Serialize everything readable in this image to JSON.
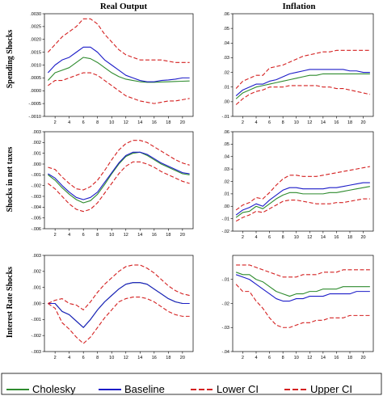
{
  "column_titles": [
    "Real Output",
    "Inflation"
  ],
  "row_titles": [
    "Spending Shocks",
    "Shocks in net taxes",
    "Interest Rate Shocks"
  ],
  "colors": {
    "cholesky": "#2e8b2e",
    "baseline": "#1c1cc8",
    "ci": "#d42020",
    "frame": "#000000"
  },
  "legend": [
    {
      "label": "Cholesky",
      "key": "cholesky"
    },
    {
      "label": "Baseline",
      "key": "baseline"
    },
    {
      "label": "Lower CI",
      "key": "lower"
    },
    {
      "label": "Upper CI",
      "key": "upper"
    }
  ],
  "chart_data": [
    {
      "type": "line",
      "row": 0,
      "col": 0,
      "x": [
        1,
        2,
        3,
        4,
        5,
        6,
        7,
        8,
        9,
        10,
        11,
        12,
        13,
        14,
        15,
        16,
        17,
        18,
        19,
        20,
        21
      ],
      "xticks": [
        2,
        4,
        6,
        8,
        10,
        12,
        14,
        16,
        18,
        20
      ],
      "xlim": [
        0.5,
        21.5
      ],
      "ylim": [
        -0.001,
        0.003
      ],
      "yticks": [
        -0.001,
        -0.0005,
        0,
        0.0005,
        0.001,
        0.0015,
        0.002,
        0.0025,
        0.003
      ],
      "ytick_labels": [
        "-.0010",
        "-.0005",
        ".0000",
        ".0005",
        ".0010",
        ".0015",
        ".0020",
        ".0025",
        ".0030"
      ],
      "series": [
        {
          "name": "Cholesky",
          "key": "cholesky",
          "values": [
            0.0004,
            0.0007,
            0.0008,
            0.0009,
            0.0011,
            0.0013,
            0.00125,
            0.0011,
            0.0009,
            0.0007,
            0.00055,
            0.00045,
            0.0004,
            0.00035,
            0.00033,
            0.00033,
            0.00034,
            0.00035,
            0.00036,
            0.00037,
            0.00038
          ]
        },
        {
          "name": "Baseline",
          "key": "baseline",
          "values": [
            0.0007,
            0.001,
            0.0012,
            0.0013,
            0.0015,
            0.0017,
            0.0017,
            0.0015,
            0.0012,
            0.001,
            0.0008,
            0.0006,
            0.0005,
            0.0004,
            0.00035,
            0.00035,
            0.0004,
            0.00042,
            0.00045,
            0.0005,
            0.0005
          ]
        },
        {
          "name": "Lower CI",
          "key": "lower",
          "values": [
            0.0002,
            0.0004,
            0.0004,
            0.0005,
            0.0006,
            0.0007,
            0.0007,
            0.0006,
            0.0004,
            0.0002,
            0.0,
            -0.0002,
            -0.0003,
            -0.0004,
            -0.00045,
            -0.0005,
            -0.00045,
            -0.0004,
            -0.0004,
            -0.00035,
            -0.0003
          ]
        },
        {
          "name": "Upper CI",
          "key": "upper",
          "values": [
            0.0015,
            0.0018,
            0.0021,
            0.0023,
            0.0025,
            0.0028,
            0.0028,
            0.0026,
            0.0022,
            0.0019,
            0.0016,
            0.0014,
            0.0013,
            0.0012,
            0.0012,
            0.0012,
            0.0012,
            0.00115,
            0.0011,
            0.0011,
            0.0011
          ]
        }
      ]
    },
    {
      "type": "line",
      "row": 0,
      "col": 1,
      "x": [
        1,
        2,
        3,
        4,
        5,
        6,
        7,
        8,
        9,
        10,
        11,
        12,
        13,
        14,
        15,
        16,
        17,
        18,
        19,
        20,
        21
      ],
      "xticks": [
        2,
        4,
        6,
        8,
        10,
        12,
        14,
        16,
        18,
        20
      ],
      "xlim": [
        0.5,
        21.5
      ],
      "ylim": [
        -0.01,
        0.06
      ],
      "yticks": [
        -0.01,
        0,
        0.01,
        0.02,
        0.03,
        0.04,
        0.05,
        0.06
      ],
      "ytick_labels": [
        "-.01",
        ".00",
        ".01",
        ".02",
        ".03",
        ".04",
        ".05",
        ".06"
      ],
      "series": [
        {
          "name": "Cholesky",
          "key": "cholesky",
          "values": [
            0.002,
            0.006,
            0.008,
            0.01,
            0.011,
            0.012,
            0.013,
            0.014,
            0.015,
            0.016,
            0.017,
            0.018,
            0.018,
            0.019,
            0.019,
            0.019,
            0.019,
            0.019,
            0.019,
            0.019,
            0.019
          ]
        },
        {
          "name": "Baseline",
          "key": "baseline",
          "values": [
            0.004,
            0.008,
            0.01,
            0.012,
            0.012,
            0.014,
            0.015,
            0.017,
            0.019,
            0.02,
            0.021,
            0.022,
            0.022,
            0.022,
            0.022,
            0.022,
            0.022,
            0.021,
            0.021,
            0.02,
            0.02
          ]
        },
        {
          "name": "Lower CI",
          "key": "lower",
          "values": [
            -0.002,
            0.002,
            0.005,
            0.007,
            0.008,
            0.01,
            0.01,
            0.01,
            0.011,
            0.011,
            0.011,
            0.011,
            0.011,
            0.01,
            0.01,
            0.009,
            0.009,
            0.008,
            0.007,
            0.006,
            0.005
          ]
        },
        {
          "name": "Upper CI",
          "key": "upper",
          "values": [
            0.009,
            0.014,
            0.016,
            0.018,
            0.018,
            0.023,
            0.024,
            0.025,
            0.027,
            0.029,
            0.031,
            0.032,
            0.033,
            0.034,
            0.034,
            0.035,
            0.035,
            0.035,
            0.035,
            0.035,
            0.035
          ]
        }
      ]
    },
    {
      "type": "line",
      "row": 1,
      "col": 0,
      "x": [
        1,
        2,
        3,
        4,
        5,
        6,
        7,
        8,
        9,
        10,
        11,
        12,
        13,
        14,
        15,
        16,
        17,
        18,
        19,
        20,
        21
      ],
      "xticks": [
        2,
        4,
        6,
        8,
        10,
        12,
        14,
        16,
        18,
        20
      ],
      "xlim": [
        0.5,
        21.5
      ],
      "ylim": [
        -0.006,
        0.003
      ],
      "yticks": [
        -0.006,
        -0.005,
        -0.004,
        -0.003,
        -0.002,
        -0.001,
        0,
        0.001,
        0.002,
        0.003
      ],
      "ytick_labels": [
        "-.006",
        "-.005",
        "-.004",
        "-.003",
        "-.002",
        "-.001",
        ".000",
        ".001",
        ".002",
        ".003"
      ],
      "series": [
        {
          "name": "Cholesky",
          "key": "cholesky",
          "values": [
            -0.001,
            -0.0015,
            -0.0022,
            -0.0028,
            -0.0033,
            -0.0036,
            -0.0034,
            -0.0028,
            -0.0019,
            -0.0009,
            0.0,
            0.0007,
            0.001,
            0.0011,
            0.0008,
            0.0004,
            0.0,
            -0.0003,
            -0.0006,
            -0.0009,
            -0.001
          ]
        },
        {
          "name": "Baseline",
          "key": "baseline",
          "values": [
            -0.0009,
            -0.0013,
            -0.002,
            -0.0026,
            -0.0031,
            -0.0033,
            -0.0031,
            -0.0026,
            -0.0017,
            -0.0008,
            0.0001,
            0.0008,
            0.0011,
            0.0011,
            0.0009,
            0.0005,
            0.0001,
            -0.0002,
            -0.0005,
            -0.0008,
            -0.0009
          ]
        },
        {
          "name": "Lower CI",
          "key": "lower",
          "values": [
            -0.0018,
            -0.0023,
            -0.003,
            -0.0037,
            -0.0042,
            -0.0044,
            -0.0042,
            -0.0036,
            -0.0027,
            -0.0018,
            -0.0009,
            -0.0002,
            0.0002,
            0.0002,
            0.0,
            -0.0003,
            -0.0007,
            -0.001,
            -0.0013,
            -0.0016,
            -0.0018
          ]
        },
        {
          "name": "Upper CI",
          "key": "upper",
          "values": [
            -0.0003,
            -0.0005,
            -0.0012,
            -0.0018,
            -0.0023,
            -0.0024,
            -0.0021,
            -0.0015,
            -0.0006,
            0.0004,
            0.0013,
            0.0019,
            0.0022,
            0.0022,
            0.002,
            0.0016,
            0.0012,
            0.0008,
            0.0004,
            0.0001,
            -0.0001
          ]
        }
      ]
    },
    {
      "type": "line",
      "row": 1,
      "col": 1,
      "x": [
        1,
        2,
        3,
        4,
        5,
        6,
        7,
        8,
        9,
        10,
        11,
        12,
        13,
        14,
        15,
        16,
        17,
        18,
        19,
        20,
        21
      ],
      "xticks": [
        2,
        4,
        6,
        8,
        10,
        12,
        14,
        16,
        18,
        20
      ],
      "xlim": [
        0.5,
        21.5
      ],
      "ylim": [
        -0.02,
        0.06
      ],
      "yticks": [
        -0.02,
        -0.01,
        0,
        0.01,
        0.02,
        0.03,
        0.04,
        0.05,
        0.06
      ],
      "ytick_labels": [
        "-.02",
        "-.01",
        ".00",
        ".01",
        ".02",
        ".03",
        ".04",
        ".05",
        ".06"
      ],
      "series": [
        {
          "name": "Cholesky",
          "key": "cholesky",
          "values": [
            -0.009,
            -0.005,
            -0.004,
            0.0,
            -0.002,
            0.002,
            0.006,
            0.009,
            0.011,
            0.011,
            0.01,
            0.01,
            0.01,
            0.01,
            0.011,
            0.011,
            0.012,
            0.013,
            0.014,
            0.015,
            0.016
          ]
        },
        {
          "name": "Baseline",
          "key": "baseline",
          "values": [
            -0.007,
            -0.003,
            -0.001,
            0.002,
            0.0,
            0.005,
            0.009,
            0.013,
            0.015,
            0.015,
            0.014,
            0.014,
            0.014,
            0.014,
            0.015,
            0.015,
            0.016,
            0.017,
            0.018,
            0.019,
            0.019
          ]
        },
        {
          "name": "Lower CI",
          "key": "lower",
          "values": [
            -0.012,
            -0.009,
            -0.007,
            -0.004,
            -0.005,
            -0.002,
            0.001,
            0.004,
            0.005,
            0.005,
            0.004,
            0.003,
            0.002,
            0.002,
            0.002,
            0.003,
            0.003,
            0.004,
            0.005,
            0.006,
            0.006
          ]
        },
        {
          "name": "Upper CI",
          "key": "upper",
          "values": [
            -0.003,
            0.001,
            0.003,
            0.007,
            0.006,
            0.011,
            0.017,
            0.022,
            0.025,
            0.025,
            0.024,
            0.024,
            0.024,
            0.025,
            0.026,
            0.027,
            0.028,
            0.029,
            0.03,
            0.031,
            0.032
          ]
        }
      ]
    },
    {
      "type": "line",
      "row": 2,
      "col": 0,
      "x": [
        1,
        2,
        3,
        4,
        5,
        6,
        7,
        8,
        9,
        10,
        11,
        12,
        13,
        14,
        15,
        16,
        17,
        18,
        19,
        20,
        21
      ],
      "xticks": [
        2,
        4,
        6,
        8,
        10,
        12,
        14,
        16,
        18,
        20
      ],
      "xlim": [
        0.5,
        21.5
      ],
      "ylim": [
        -0.003,
        0.003
      ],
      "yticks": [
        -0.003,
        -0.002,
        -0.001,
        0,
        0.001,
        0.002,
        0.003
      ],
      "ytick_labels": [
        "-.003",
        "-.002",
        "-.001",
        ".000",
        ".001",
        ".002",
        ".003"
      ],
      "series": [
        {
          "name": "Cholesky",
          "key": "cholesky",
          "values": [
            0.0,
            0.0,
            -0.0005,
            -0.0007,
            -0.0011,
            -0.0015,
            -0.001,
            -0.0004,
            0.0001,
            0.0005,
            0.0009,
            0.0012,
            0.0013,
            0.0013,
            0.0012,
            0.0009,
            0.0006,
            0.0003,
            0.0001,
            0.0,
            0.0
          ]
        },
        {
          "name": "Baseline",
          "key": "baseline",
          "values": [
            0.0,
            0.0,
            -0.0005,
            -0.0007,
            -0.0011,
            -0.0015,
            -0.001,
            -0.0004,
            0.0001,
            0.0005,
            0.0009,
            0.0012,
            0.0013,
            0.0013,
            0.0012,
            0.0009,
            0.0006,
            0.0003,
            0.0001,
            0.0,
            0.0
          ]
        },
        {
          "name": "Lower CI",
          "key": "lower",
          "values": [
            0.0,
            -0.0003,
            -0.0012,
            -0.0016,
            -0.0021,
            -0.0025,
            -0.0021,
            -0.0015,
            -0.0009,
            -0.0004,
            0.0001,
            0.0003,
            0.0004,
            0.0004,
            0.0003,
            0.0001,
            -0.0002,
            -0.0005,
            -0.0007,
            -0.0008,
            -0.0008
          ]
        },
        {
          "name": "Upper CI",
          "key": "upper",
          "values": [
            0.0,
            0.0002,
            0.0003,
            0.0,
            -0.0001,
            -0.0004,
            0.0001,
            0.0007,
            0.0012,
            0.0016,
            0.002,
            0.0023,
            0.0024,
            0.0024,
            0.0022,
            0.0019,
            0.0015,
            0.0011,
            0.0008,
            0.0006,
            0.0005
          ]
        }
      ]
    },
    {
      "type": "line",
      "row": 2,
      "col": 1,
      "x": [
        1,
        2,
        3,
        4,
        5,
        6,
        7,
        8,
        9,
        10,
        11,
        12,
        13,
        14,
        15,
        16,
        17,
        18,
        19,
        20,
        21
      ],
      "xticks": [
        2,
        4,
        6,
        8,
        10,
        12,
        14,
        16,
        18,
        20
      ],
      "xlim": [
        0.5,
        21.5
      ],
      "ylim": [
        -0.04,
        0.0
      ],
      "yticks": [
        -0.04,
        -0.03,
        -0.02,
        -0.01
      ],
      "ytick_labels": [
        "-.04",
        "-.03",
        "-.02",
        "-.01"
      ],
      "series": [
        {
          "name": "Cholesky",
          "key": "cholesky",
          "values": [
            -0.007,
            -0.008,
            -0.008,
            -0.01,
            -0.011,
            -0.013,
            -0.015,
            -0.016,
            -0.017,
            -0.016,
            -0.016,
            -0.015,
            -0.015,
            -0.014,
            -0.014,
            -0.014,
            -0.013,
            -0.013,
            -0.013,
            -0.013,
            -0.013
          ]
        },
        {
          "name": "Baseline",
          "key": "baseline",
          "values": [
            -0.008,
            -0.009,
            -0.01,
            -0.012,
            -0.014,
            -0.016,
            -0.018,
            -0.019,
            -0.019,
            -0.018,
            -0.018,
            -0.017,
            -0.017,
            -0.017,
            -0.016,
            -0.016,
            -0.016,
            -0.016,
            -0.015,
            -0.015,
            -0.015
          ]
        },
        {
          "name": "Lower CI",
          "key": "lower",
          "values": [
            -0.012,
            -0.015,
            -0.015,
            -0.019,
            -0.022,
            -0.026,
            -0.029,
            -0.03,
            -0.03,
            -0.029,
            -0.028,
            -0.028,
            -0.027,
            -0.027,
            -0.026,
            -0.026,
            -0.026,
            -0.025,
            -0.025,
            -0.025,
            -0.025
          ]
        },
        {
          "name": "Upper CI",
          "key": "upper",
          "values": [
            -0.004,
            -0.004,
            -0.004,
            -0.005,
            -0.006,
            -0.007,
            -0.008,
            -0.009,
            -0.009,
            -0.009,
            -0.008,
            -0.008,
            -0.008,
            -0.007,
            -0.007,
            -0.007,
            -0.006,
            -0.006,
            -0.006,
            -0.006,
            -0.006
          ]
        }
      ]
    }
  ]
}
